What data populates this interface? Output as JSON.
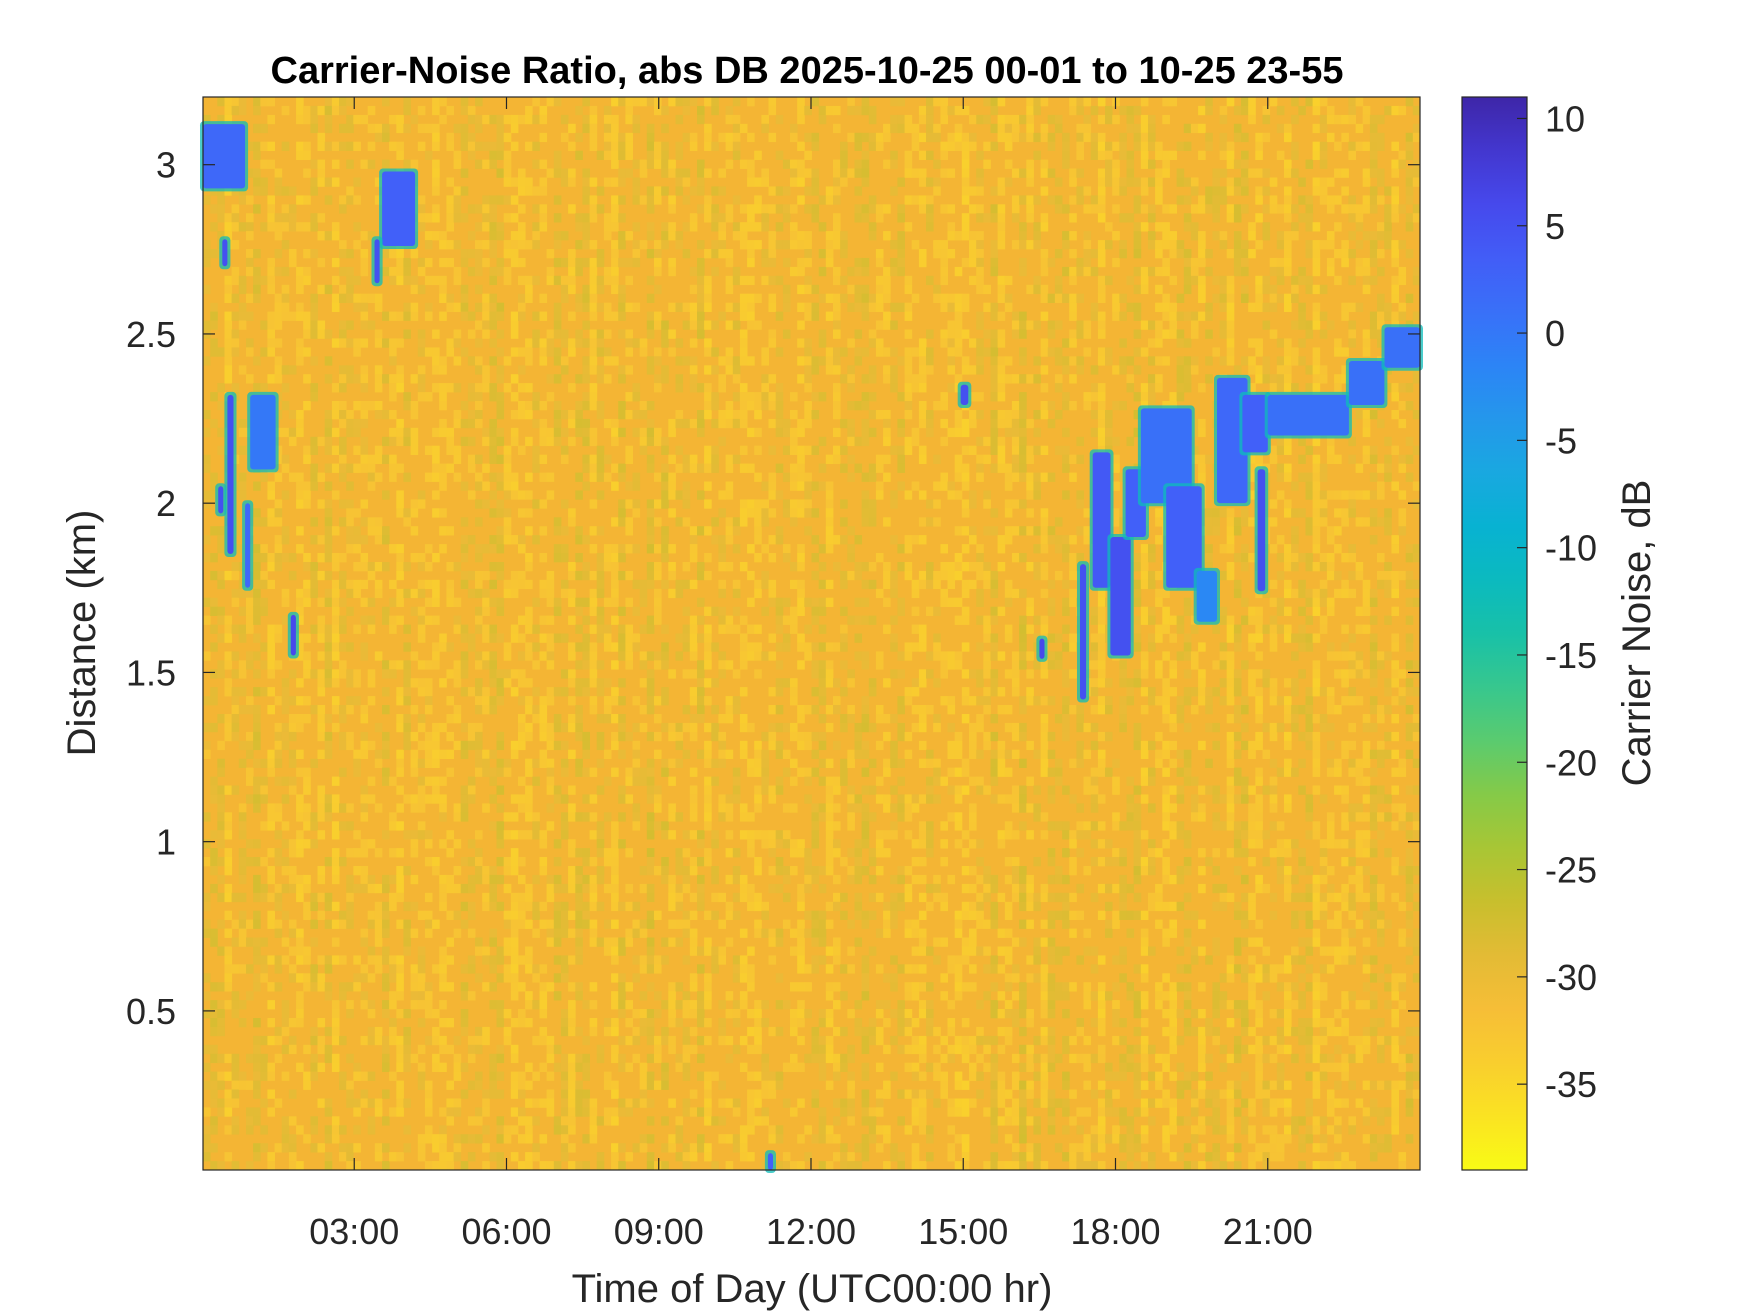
{
  "chart_data": {
    "type": "heatmap",
    "title": "Carrier-Noise Ratio, abs DB 2025-10-25 00-01 to 10-25 23-55",
    "xlabel": "Time of Day (UTC00:00 hr)",
    "ylabel": "Distance (km)",
    "colorbar_label": "Carrier Noise, dB",
    "xlim_hours": [
      0.02,
      24.0
    ],
    "ylim_km": [
      0.03,
      3.2
    ],
    "clim_db": [
      -39,
      11
    ],
    "xticks": [
      {
        "value": 3,
        "label": "03:00"
      },
      {
        "value": 6,
        "label": "06:00"
      },
      {
        "value": 9,
        "label": "09:00"
      },
      {
        "value": 12,
        "label": "12:00"
      },
      {
        "value": 15,
        "label": "15:00"
      },
      {
        "value": 18,
        "label": "18:00"
      },
      {
        "value": 21,
        "label": "21:00"
      }
    ],
    "yticks": [
      {
        "value": 0.5,
        "label": "0.5"
      },
      {
        "value": 1,
        "label": "1"
      },
      {
        "value": 1.5,
        "label": "1.5"
      },
      {
        "value": 2,
        "label": "2"
      },
      {
        "value": 2.5,
        "label": "2.5"
      },
      {
        "value": 3,
        "label": "3"
      }
    ],
    "colorbar_ticks": [
      {
        "value": 10,
        "label": "10"
      },
      {
        "value": 5,
        "label": "5"
      },
      {
        "value": 0,
        "label": "0"
      },
      {
        "value": -5,
        "label": "-5"
      },
      {
        "value": -10,
        "label": "-10"
      },
      {
        "value": -15,
        "label": "-15"
      },
      {
        "value": -20,
        "label": "-20"
      },
      {
        "value": -25,
        "label": "-25"
      },
      {
        "value": -30,
        "label": "-30"
      },
      {
        "value": -35,
        "label": "-35"
      }
    ],
    "colormap": [
      "#3e26a8",
      "#4743e9",
      "#4163fa",
      "#2c84f6",
      "#1ea4e4",
      "#03b6ce",
      "#18c1a8",
      "#4ccb7c",
      "#93ca3b",
      "#c8bf2d",
      "#f5b93a",
      "#fad32b",
      "#f9fb15"
    ],
    "background_level_db": -31,
    "features": [
      {
        "t": [
          0.02,
          0.85
        ],
        "d": [
          2.93,
          3.12
        ],
        "db": 2
      },
      {
        "t": [
          3.55,
          4.2
        ],
        "d": [
          2.76,
          2.98
        ],
        "db": 3
      },
      {
        "t": [
          0.95,
          1.45
        ],
        "d": [
          2.1,
          2.32
        ],
        "db": 0
      },
      {
        "t": [
          0.4,
          0.5
        ],
        "d": [
          2.7,
          2.78
        ],
        "db": 5
      },
      {
        "t": [
          3.4,
          3.5
        ],
        "d": [
          2.65,
          2.78
        ],
        "db": 5
      },
      {
        "t": [
          0.5,
          0.62
        ],
        "d": [
          1.85,
          2.32
        ],
        "db": 5
      },
      {
        "t": [
          0.32,
          0.42
        ],
        "d": [
          1.97,
          2.05
        ],
        "db": 5
      },
      {
        "t": [
          1.75,
          1.85
        ],
        "d": [
          1.55,
          1.67
        ],
        "db": 6
      },
      {
        "t": [
          0.85,
          0.95
        ],
        "d": [
          1.75,
          2.0
        ],
        "db": 2
      },
      {
        "t": [
          14.95,
          15.1
        ],
        "d": [
          2.29,
          2.35
        ],
        "db": 5
      },
      {
        "t": [
          11.15,
          11.25
        ],
        "d": [
          0.03,
          0.08
        ],
        "db": 3
      },
      {
        "t": [
          16.5,
          16.6
        ],
        "d": [
          1.54,
          1.6
        ],
        "db": 6
      },
      {
        "t": [
          17.3,
          17.42
        ],
        "d": [
          1.42,
          1.82
        ],
        "db": 5
      },
      {
        "t": [
          17.55,
          17.9
        ],
        "d": [
          1.75,
          2.15
        ],
        "db": 4
      },
      {
        "t": [
          17.9,
          18.3
        ],
        "d": [
          1.55,
          1.9
        ],
        "db": 5
      },
      {
        "t": [
          18.2,
          18.6
        ],
        "d": [
          1.9,
          2.1
        ],
        "db": 3
      },
      {
        "t": [
          18.5,
          19.5
        ],
        "d": [
          2.0,
          2.28
        ],
        "db": 1
      },
      {
        "t": [
          19.0,
          19.7
        ],
        "d": [
          1.75,
          2.05
        ],
        "db": 3
      },
      {
        "t": [
          19.6,
          20.0
        ],
        "d": [
          1.65,
          1.8
        ],
        "db": -2
      },
      {
        "t": [
          20.0,
          20.6
        ],
        "d": [
          2.0,
          2.37
        ],
        "db": 2
      },
      {
        "t": [
          20.5,
          21.0
        ],
        "d": [
          2.15,
          2.32
        ],
        "db": 3
      },
      {
        "t": [
          20.8,
          20.95
        ],
        "d": [
          1.74,
          2.1
        ],
        "db": 5
      },
      {
        "t": [
          21.0,
          22.6
        ],
        "d": [
          2.2,
          2.32
        ],
        "db": 1
      },
      {
        "t": [
          22.6,
          23.3
        ],
        "d": [
          2.29,
          2.42
        ],
        "db": 1
      },
      {
        "t": [
          23.3,
          24.0
        ],
        "d": [
          2.4,
          2.52
        ],
        "db": 1
      }
    ]
  }
}
